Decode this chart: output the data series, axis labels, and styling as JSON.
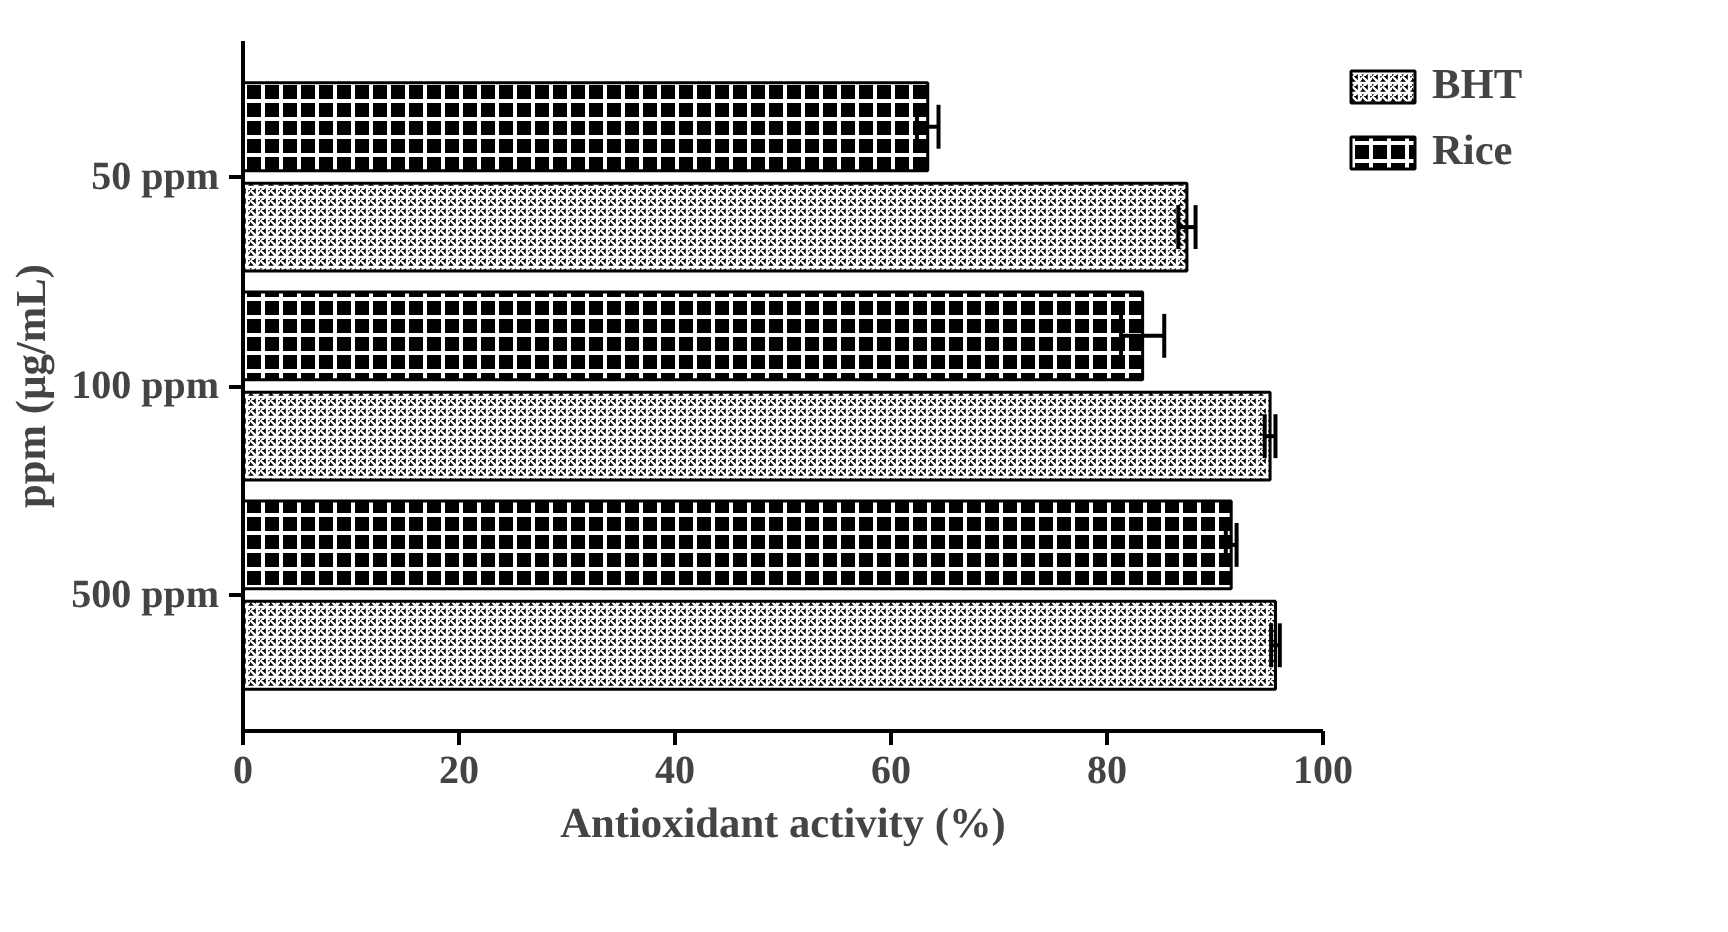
{
  "chart_data": {
    "type": "bar",
    "orientation": "horizontal",
    "xlabel": "Antioxidant activity (%)",
    "ylabel": "ppm (µg/mL)",
    "categories": [
      "50 ppm",
      "100 ppm",
      "500 ppm"
    ],
    "series": [
      {
        "name": "BHT",
        "color": "#000000",
        "values": [
          87.4,
          95.1,
          95.6
        ],
        "errors": [
          0.8,
          0.5,
          0.4
        ]
      },
      {
        "name": "Rice",
        "color": "#000000",
        "values": [
          63.4,
          83.3,
          91.5
        ],
        "errors": [
          1.0,
          2.0,
          0.5
        ]
      }
    ],
    "xlim": [
      0,
      100
    ],
    "xticks": [
      0,
      20,
      40,
      60,
      80,
      100
    ],
    "grid": false,
    "legend": "top right"
  }
}
